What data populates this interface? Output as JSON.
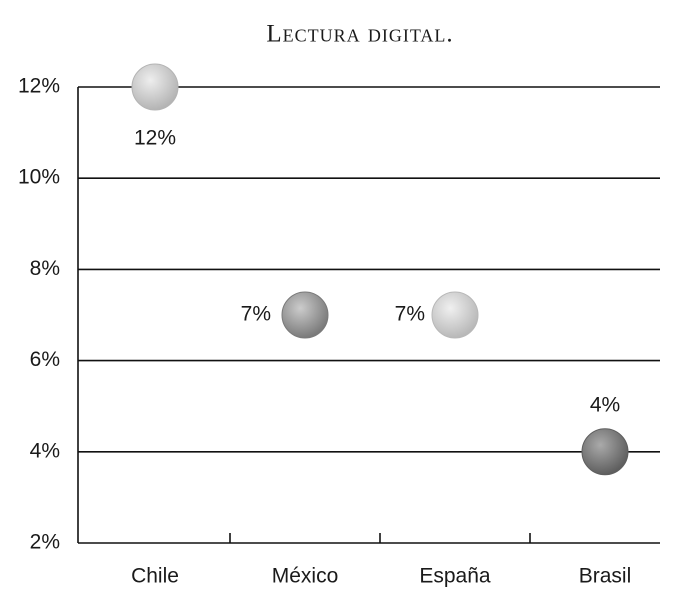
{
  "chart_data": {
    "type": "dot",
    "title": "Lectura digital.",
    "categories": [
      "Chile",
      "México",
      "España",
      "Brasil"
    ],
    "values": [
      12,
      7,
      7,
      4
    ],
    "value_labels": [
      "12%",
      "7%",
      "7%",
      "4%"
    ],
    "colors": [
      "#b4b4b4",
      "#7a7a7a",
      "#b8b8b8",
      "#5e5e5e"
    ],
    "ylim": [
      2,
      12
    ],
    "yticks": [
      {
        "value": 2,
        "label": "2%"
      },
      {
        "value": 4,
        "label": "4%"
      },
      {
        "value": 6,
        "label": "6%"
      },
      {
        "value": 8,
        "label": "8%"
      },
      {
        "value": 10,
        "label": "10%"
      },
      {
        "value": 12,
        "label": "12%"
      }
    ],
    "grid": true
  }
}
